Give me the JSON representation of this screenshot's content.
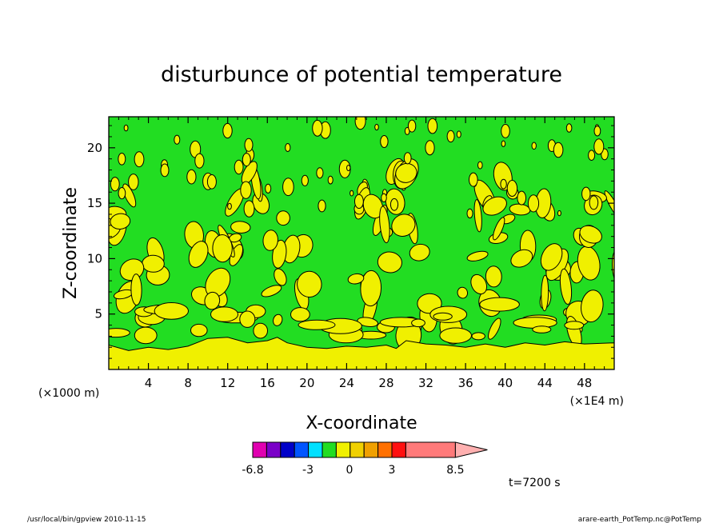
{
  "chart_data": {
    "type": "heatmap",
    "title": "disturbunce of potential temperature",
    "xlabel": "X-coordinate",
    "ylabel": "Z-coordinate",
    "x_unit_note": "(×1E4 m)",
    "y_unit_note": "(×1000 m)",
    "xlim": [
      0,
      51
    ],
    "ylim": [
      0,
      22.8
    ],
    "x_ticks": [
      4,
      8,
      12,
      16,
      20,
      24,
      28,
      32,
      36,
      40,
      44,
      48
    ],
    "y_ticks": [
      5,
      10,
      15,
      20
    ],
    "contour_levels": [
      0
    ],
    "background_level_color": "#22dd22",
    "positive_region_color": "#f0f000",
    "surface_layer": {
      "z_top_by_x": [
        [
          0,
          2.2
        ],
        [
          2,
          1.7
        ],
        [
          4,
          2.0
        ],
        [
          6,
          1.8
        ],
        [
          8,
          2.1
        ],
        [
          10,
          2.8
        ],
        [
          12,
          2.9
        ],
        [
          14,
          2.4
        ],
        [
          16,
          2.6
        ],
        [
          17,
          2.9
        ],
        [
          18,
          2.4
        ],
        [
          20,
          2.0
        ],
        [
          22,
          1.9
        ],
        [
          24,
          2.1
        ],
        [
          26,
          2.0
        ],
        [
          28,
          2.2
        ],
        [
          29,
          1.9
        ],
        [
          30,
          2.6
        ],
        [
          32,
          2.3
        ],
        [
          34,
          2.2
        ],
        [
          36,
          2.0
        ],
        [
          38,
          2.3
        ],
        [
          40,
          2.0
        ],
        [
          42,
          2.4
        ],
        [
          44,
          2.2
        ],
        [
          46,
          2.5
        ],
        [
          48,
          2.3
        ],
        [
          51,
          2.4
        ]
      ]
    },
    "colorbar": {
      "colors": [
        "#e000b0",
        "#7a00c8",
        "#0000c8",
        "#0055ff",
        "#00e0ff",
        "#22dd22",
        "#f0f000",
        "#f0d000",
        "#f0a000",
        "#ff7000",
        "#ff1010",
        "#ff7a7a"
      ],
      "tick_labels": [
        "-6.8",
        "-3",
        "0",
        "3",
        "8.5"
      ],
      "tick_values": [
        -6.8,
        -3,
        0,
        3,
        8.5
      ]
    }
  },
  "annotations": {
    "time": "t=7200 s",
    "program": "/usr/local/bin/gpview  2010-11-15",
    "source": "arare-earth_PotTemp.nc@PotTemp"
  }
}
